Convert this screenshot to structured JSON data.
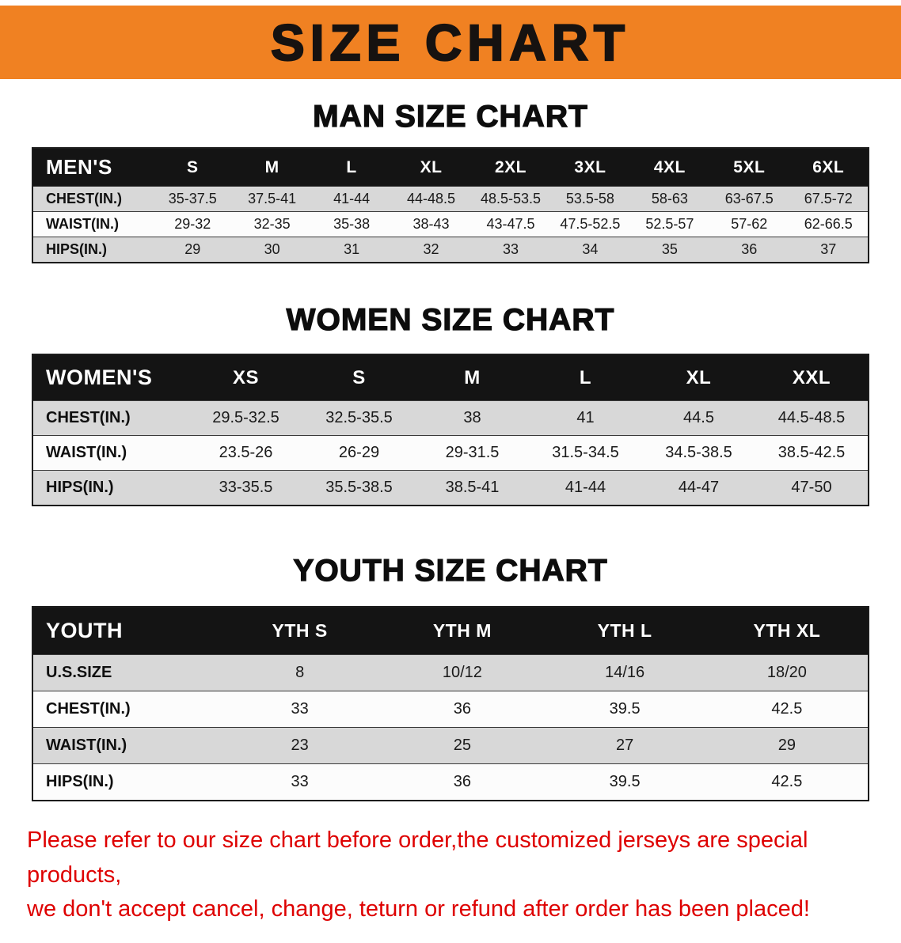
{
  "banner": {
    "title": "SIZE CHART",
    "background_color": "#F08122",
    "text_color": "#161210"
  },
  "sections": [
    {
      "heading": "MAN SIZE CHART",
      "table": {
        "name": "men",
        "header": [
          "MEN'S",
          "S",
          "M",
          "L",
          "XL",
          "2XL",
          "3XL",
          "4XL",
          "5XL",
          "6XL"
        ],
        "rows": [
          [
            "CHEST(IN.)",
            "35-37.5",
            "37.5-41",
            "41-44",
            "44-48.5",
            "48.5-53.5",
            "53.5-58",
            "58-63",
            "63-67.5",
            "67.5-72"
          ],
          [
            "WAIST(IN.)",
            "29-32",
            "32-35",
            "35-38",
            "38-43",
            "43-47.5",
            "47.5-52.5",
            "52.5-57",
            "57-62",
            "62-66.5"
          ],
          [
            "HIPS(IN.)",
            "29",
            "30",
            "31",
            "32",
            "33",
            "34",
            "35",
            "36",
            "37"
          ]
        ]
      }
    },
    {
      "heading": "WOMEN SIZE CHART",
      "table": {
        "name": "women",
        "header": [
          "WOMEN'S",
          "XS",
          "S",
          "M",
          "L",
          "XL",
          "XXL"
        ],
        "rows": [
          [
            "CHEST(IN.)",
            "29.5-32.5",
            "32.5-35.5",
            "38",
            "41",
            "44.5",
            "44.5-48.5"
          ],
          [
            "WAIST(IN.)",
            "23.5-26",
            "26-29",
            "29-31.5",
            "31.5-34.5",
            "34.5-38.5",
            "38.5-42.5"
          ],
          [
            "HIPS(IN.)",
            "33-35.5",
            "35.5-38.5",
            "38.5-41",
            "41-44",
            "44-47",
            "47-50"
          ]
        ]
      }
    },
    {
      "heading": "YOUTH SIZE CHART",
      "table": {
        "name": "youth",
        "header": [
          "YOUTH",
          "YTH S",
          "YTH M",
          "YTH L",
          "YTH XL"
        ],
        "rows": [
          [
            "U.S.SIZE",
            "8",
            "10/12",
            "14/16",
            "18/20"
          ],
          [
            "CHEST(IN.)",
            "33",
            "36",
            "39.5",
            "42.5"
          ],
          [
            "WAIST(IN.)",
            "23",
            "25",
            "27",
            "29"
          ],
          [
            "HIPS(IN.)",
            "33",
            "36",
            "39.5",
            "42.5"
          ]
        ]
      }
    }
  ],
  "disclaimer": {
    "color": "#DE0000",
    "line1": "Please refer to our size chart before order,the customized jerseys are special products,",
    "line2": "we don't accept cancel, change, teturn or refund after order has been placed!"
  }
}
